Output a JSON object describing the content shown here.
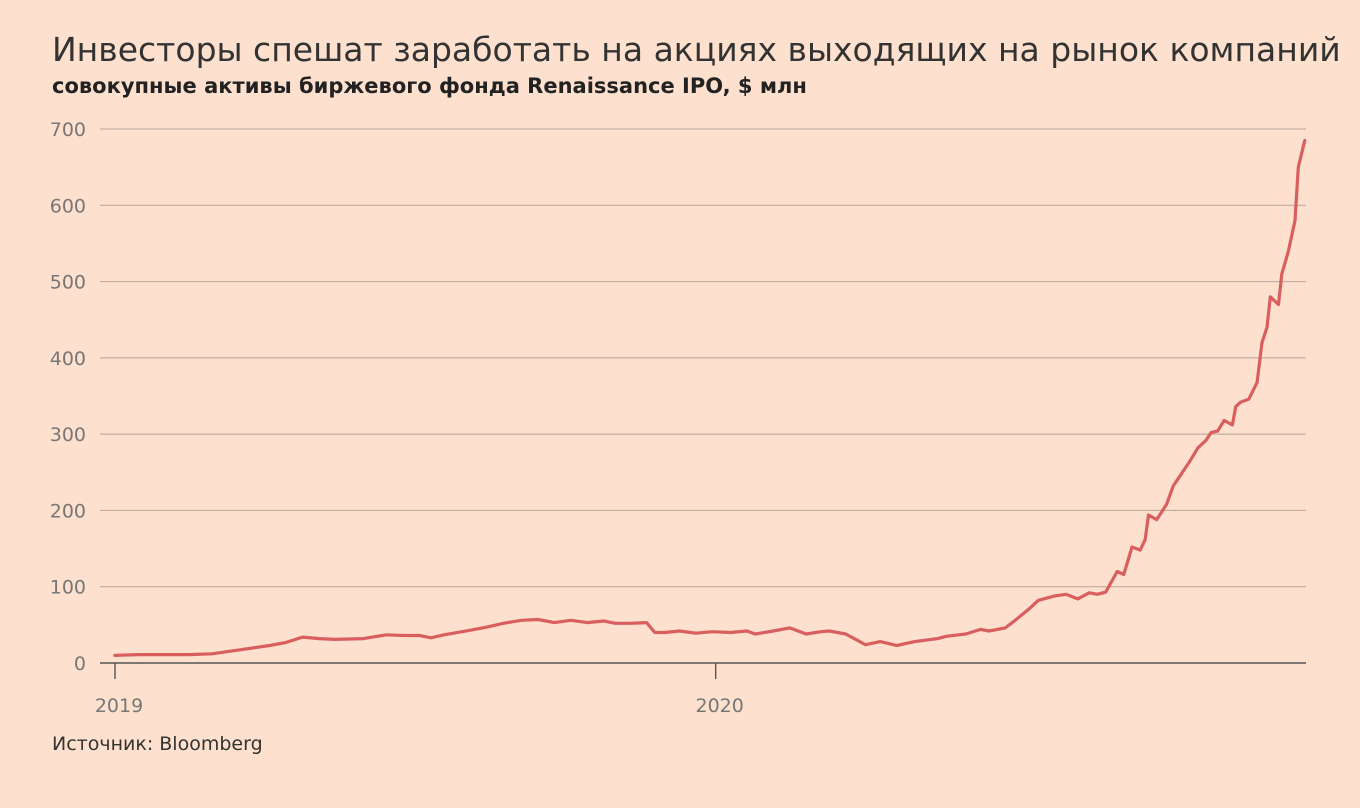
{
  "title": "Инвесторы спешат заработать на акциях выходящих на рынок компаний",
  "subtitle": "совокупные активы биржевого фонда Renaissance IPO, $ млн",
  "source": "Источник: Bloomberg",
  "colors": {
    "background": "#fde0cd",
    "line": "#d95f5f"
  },
  "chart_data": {
    "type": "line",
    "title": "Инвесторы спешат заработать на акциях выходящих на рынок компаний",
    "subtitle": "совокупные активы биржевого фонда Renaissance IPO, $ млн",
    "xlabel": "",
    "ylabel": "",
    "ylim": [
      0,
      700
    ],
    "yticks": [
      0,
      100,
      200,
      300,
      400,
      500,
      600,
      700
    ],
    "xlim": [
      "2019-01-01",
      "2021-01-01"
    ],
    "xticks": [
      {
        "label": "2019",
        "date": "2019-01-01"
      },
      {
        "label": "2020",
        "date": "2020-01-01"
      }
    ],
    "grid": true,
    "legend": "none",
    "series": [
      {
        "x": [
          "2019-01-01",
          "2019-01-15",
          "2019-02-01",
          "2019-02-15",
          "2019-03-01",
          "2019-03-20",
          "2019-04-05",
          "2019-04-15",
          "2019-04-25",
          "2019-05-05",
          "2019-05-15",
          "2019-06-01",
          "2019-06-15",
          "2019-06-25",
          "2019-07-05",
          "2019-07-12",
          "2019-07-20",
          "2019-08-05",
          "2019-08-15",
          "2019-08-25",
          "2019-09-05",
          "2019-09-15",
          "2019-09-25",
          "2019-10-05",
          "2019-10-15",
          "2019-10-25",
          "2019-11-01",
          "2019-11-10",
          "2019-11-20",
          "2019-11-25",
          "2019-12-01",
          "2019-12-10",
          "2019-12-20",
          "2019-12-30",
          "2020-01-10",
          "2020-01-20",
          "2020-01-25",
          "2020-02-05",
          "2020-02-15",
          "2020-02-25",
          "2020-03-05",
          "2020-03-10",
          "2020-03-20",
          "2020-04-01",
          "2020-04-10",
          "2020-04-20",
          "2020-05-01",
          "2020-05-15",
          "2020-05-20",
          "2020-06-01",
          "2020-06-10",
          "2020-06-15",
          "2020-06-25",
          "2020-07-01",
          "2020-07-10",
          "2020-07-15",
          "2020-07-25",
          "2020-08-01",
          "2020-08-08",
          "2020-08-15",
          "2020-08-20",
          "2020-08-25",
          "2020-09-01",
          "2020-09-05",
          "2020-09-10",
          "2020-09-15",
          "2020-09-18",
          "2020-09-20",
          "2020-09-25",
          "2020-10-01",
          "2020-10-05",
          "2020-10-10",
          "2020-10-15",
          "2020-10-20",
          "2020-10-25",
          "2020-10-28",
          "2020-11-01",
          "2020-11-05",
          "2020-11-10",
          "2020-11-12",
          "2020-11-15",
          "2020-11-20",
          "2020-11-25",
          "2020-11-28",
          "2020-12-01",
          "2020-12-03",
          "2020-12-08",
          "2020-12-10",
          "2020-12-14",
          "2020-12-18",
          "2020-12-20",
          "2020-12-24"
        ],
        "values": [
          10,
          11,
          11,
          11,
          12,
          18,
          23,
          27,
          34,
          32,
          31,
          32,
          37,
          36,
          36,
          33,
          37,
          43,
          47,
          52,
          56,
          57,
          53,
          56,
          53,
          55,
          52,
          52,
          53,
          40,
          40,
          42,
          39,
          41,
          40,
          42,
          38,
          42,
          46,
          38,
          41,
          42,
          38,
          24,
          28,
          23,
          28,
          32,
          35,
          38,
          44,
          42,
          46,
          56,
          72,
          82,
          88,
          90,
          84,
          92,
          90,
          93,
          120,
          116,
          152,
          148,
          162,
          194,
          188,
          208,
          232,
          248,
          264,
          282,
          292,
          302,
          304,
          318,
          312,
          336,
          342,
          346,
          368,
          420,
          440,
          480,
          470,
          510,
          540,
          580,
          650,
          685
        ]
      }
    ]
  }
}
